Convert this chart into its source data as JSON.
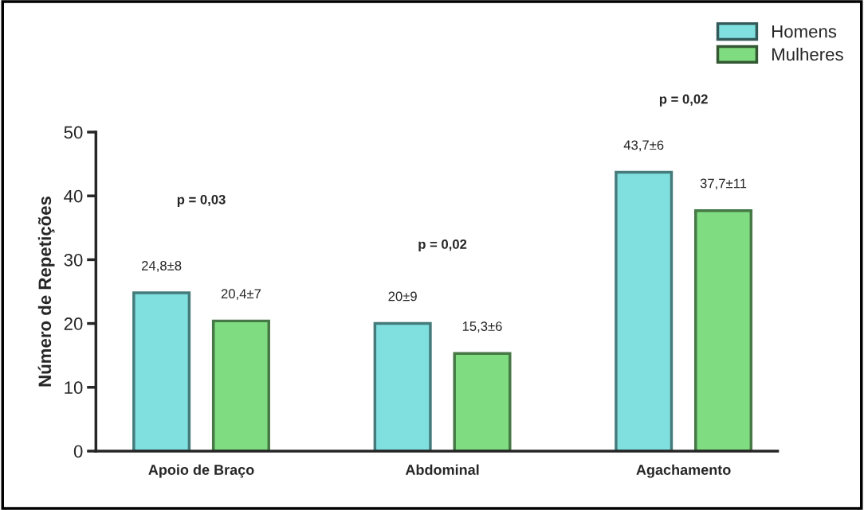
{
  "chart_data": {
    "type": "bar",
    "ylabel": "Número de Repetições",
    "categories": [
      "Apoio de Braço",
      "Abdominal",
      "Agachamento"
    ],
    "series": [
      {
        "name": "Homens",
        "color": "#80dfdf",
        "values": [
          24.8,
          20,
          43.7
        ],
        "value_labels": [
          "24,8±8",
          "20±9",
          "43,7±6"
        ]
      },
      {
        "name": "Mulheres",
        "color": "#80dc80",
        "values": [
          20.4,
          15.3,
          37.7
        ],
        "value_labels": [
          "20,4±7",
          "15,3±6",
          "37,7±11"
        ]
      }
    ],
    "ylim": [
      0,
      50
    ],
    "yticks": [
      0,
      10,
      20,
      30,
      40,
      50
    ],
    "grid": false,
    "legend": "top right",
    "annotations": [
      "p = 0,03",
      "p = 0,02",
      "p = 0,02"
    ]
  }
}
